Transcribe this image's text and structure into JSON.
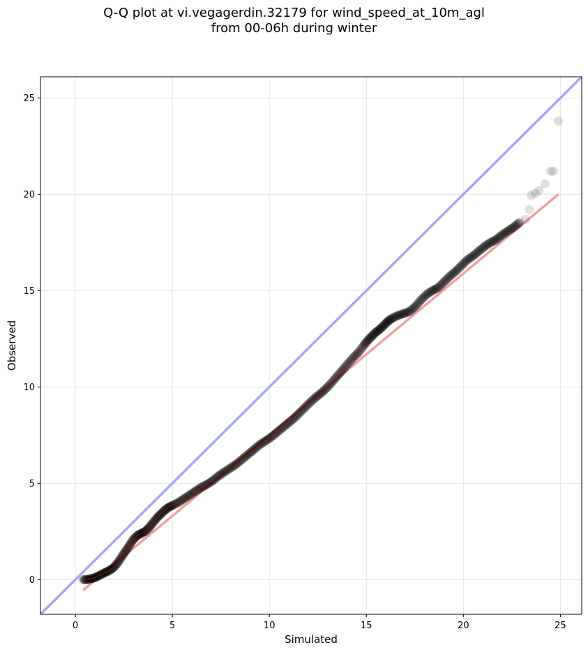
{
  "chart_data": {
    "type": "scatter",
    "title_lines": [
      "Q-Q plot at vi.vegagerdin.32179 for wind_speed_at_10m_agl",
      "from 00-06h during winter"
    ],
    "xlabel": "Simulated",
    "ylabel": "Observed",
    "xlim": [
      -1.8,
      26.1
    ],
    "ylim": [
      -1.8,
      26.1
    ],
    "xticks": [
      0,
      5,
      10,
      15,
      20,
      25
    ],
    "yticks": [
      0,
      5,
      10,
      15,
      20,
      25
    ],
    "grid": true,
    "colors": {
      "points": "#000000",
      "identity_line": "#a6a8f5",
      "fit_line": "#f4a0a0",
      "fit_line_core": "#c01010"
    },
    "identity_line": {
      "x": [
        -1.8,
        26.1
      ],
      "y": [
        -1.8,
        26.1
      ]
    },
    "fit_line": {
      "x": [
        0.4,
        24.9
      ],
      "y": [
        -0.55,
        20.0
      ]
    },
    "quantiles": {
      "x": [
        0.4,
        0.6,
        0.8,
        1.0,
        1.2,
        1.4,
        1.6,
        1.8,
        2.0,
        2.2,
        2.4,
        2.6,
        2.8,
        3.0,
        3.2,
        3.4,
        3.6,
        3.8,
        4.0,
        4.2,
        4.4,
        4.6,
        4.8,
        5.0,
        5.3,
        5.6,
        5.9,
        6.2,
        6.5,
        6.8,
        7.1,
        7.4,
        7.7,
        8.0,
        8.3,
        8.6,
        8.9,
        9.2,
        9.5,
        9.8,
        10.1,
        10.4,
        10.7,
        11.0,
        11.3,
        11.6,
        11.9,
        12.2,
        12.5,
        12.8,
        13.1,
        13.4,
        13.7,
        14.0,
        14.3,
        14.6,
        14.9,
        15.1,
        15.3,
        15.5,
        15.7,
        15.9,
        16.1,
        16.3,
        16.6,
        16.9,
        17.2,
        17.5,
        17.8,
        18.1,
        18.4,
        18.7,
        19.0,
        19.3,
        19.6,
        19.9,
        20.2,
        20.5,
        20.8,
        21.1,
        21.4,
        21.7,
        22.0,
        22.3,
        22.6,
        22.9,
        23.2,
        23.4,
        23.5,
        23.7,
        23.9,
        24.2,
        24.5,
        24.65,
        24.9
      ],
      "y": [
        0.0,
        0.0,
        0.05,
        0.1,
        0.2,
        0.3,
        0.4,
        0.5,
        0.65,
        0.9,
        1.2,
        1.5,
        1.8,
        2.1,
        2.3,
        2.4,
        2.5,
        2.7,
        2.95,
        3.2,
        3.4,
        3.6,
        3.75,
        3.85,
        4.0,
        4.2,
        4.4,
        4.6,
        4.8,
        4.95,
        5.15,
        5.4,
        5.6,
        5.8,
        6.0,
        6.25,
        6.5,
        6.75,
        7.0,
        7.2,
        7.4,
        7.65,
        7.9,
        8.15,
        8.4,
        8.7,
        9.0,
        9.3,
        9.55,
        9.8,
        10.1,
        10.45,
        10.8,
        11.15,
        11.5,
        11.8,
        12.2,
        12.45,
        12.65,
        12.85,
        13.0,
        13.2,
        13.4,
        13.55,
        13.7,
        13.8,
        13.9,
        14.15,
        14.5,
        14.8,
        15.0,
        15.15,
        15.45,
        15.75,
        16.0,
        16.3,
        16.6,
        16.8,
        17.05,
        17.3,
        17.5,
        17.65,
        17.9,
        18.1,
        18.3,
        18.55,
        18.7,
        19.2,
        19.95,
        20.05,
        20.2,
        20.55,
        21.2,
        21.2,
        23.8
      ]
    }
  }
}
